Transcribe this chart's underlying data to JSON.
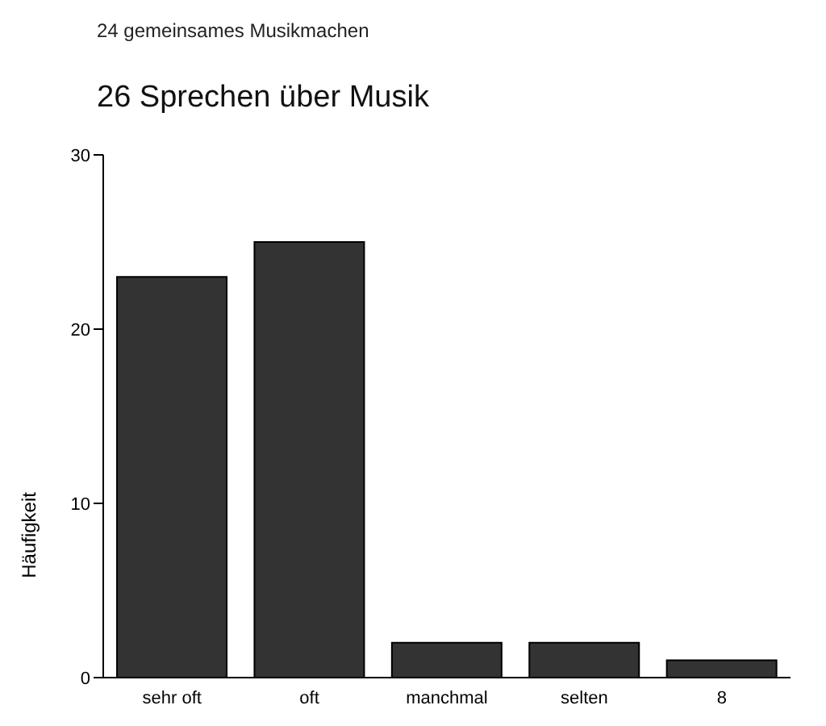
{
  "chart_data": {
    "type": "bar",
    "annotations": [
      "24 gemeinsames Musikmachen"
    ],
    "title": "26 Sprechen über Musik",
    "ylabel": "Häufigkeit",
    "categories": [
      "sehr oft",
      "oft",
      "manchmal",
      "selten",
      "8"
    ],
    "values": [
      23,
      25,
      2,
      2,
      1
    ],
    "color": "#333333",
    "ylim": [
      0,
      30
    ],
    "yticks": [
      0,
      10,
      20,
      30
    ]
  }
}
